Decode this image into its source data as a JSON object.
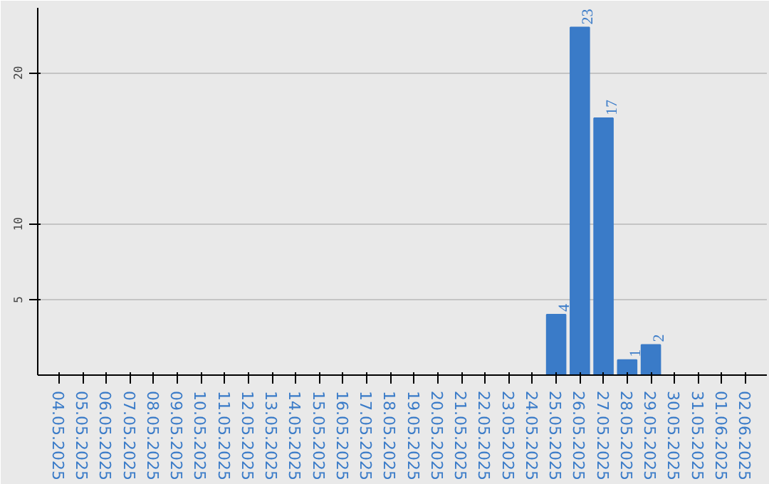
{
  "chart_data": {
    "type": "bar",
    "categories": [
      "04.05.2025",
      "05.05.2025",
      "06.05.2025",
      "07.05.2025",
      "08.05.2025",
      "09.05.2025",
      "10.05.2025",
      "11.05.2025",
      "12.05.2025",
      "13.05.2025",
      "14.05.2025",
      "15.05.2025",
      "16.05.2025",
      "17.05.2025",
      "18.05.2025",
      "19.05.2025",
      "20.05.2025",
      "21.05.2025",
      "22.05.2025",
      "23.05.2025",
      "24.05.2025",
      "25.05.2025",
      "26.05.2025",
      "27.05.2025",
      "28.05.2025",
      "29.05.2025",
      "30.05.2025",
      "31.05.2025",
      "01.06.2025",
      "02.06.2025"
    ],
    "values": [
      0,
      0,
      0,
      0,
      0,
      0,
      0,
      0,
      0,
      0,
      0,
      0,
      0,
      0,
      0,
      0,
      0,
      0,
      0,
      0,
      0,
      4,
      23,
      17,
      1,
      2,
      0,
      0,
      0,
      0
    ],
    "value_labels": [
      null,
      null,
      null,
      null,
      null,
      null,
      null,
      null,
      null,
      null,
      null,
      null,
      null,
      null,
      null,
      null,
      null,
      null,
      null,
      null,
      null,
      "4",
      "23",
      "17",
      "1",
      "2",
      null,
      null,
      null,
      null
    ],
    "color": "#3a7bc8",
    "ylim": [
      0,
      24.3
    ],
    "yticks": [
      5,
      10,
      20
    ],
    "grid": "y"
  }
}
